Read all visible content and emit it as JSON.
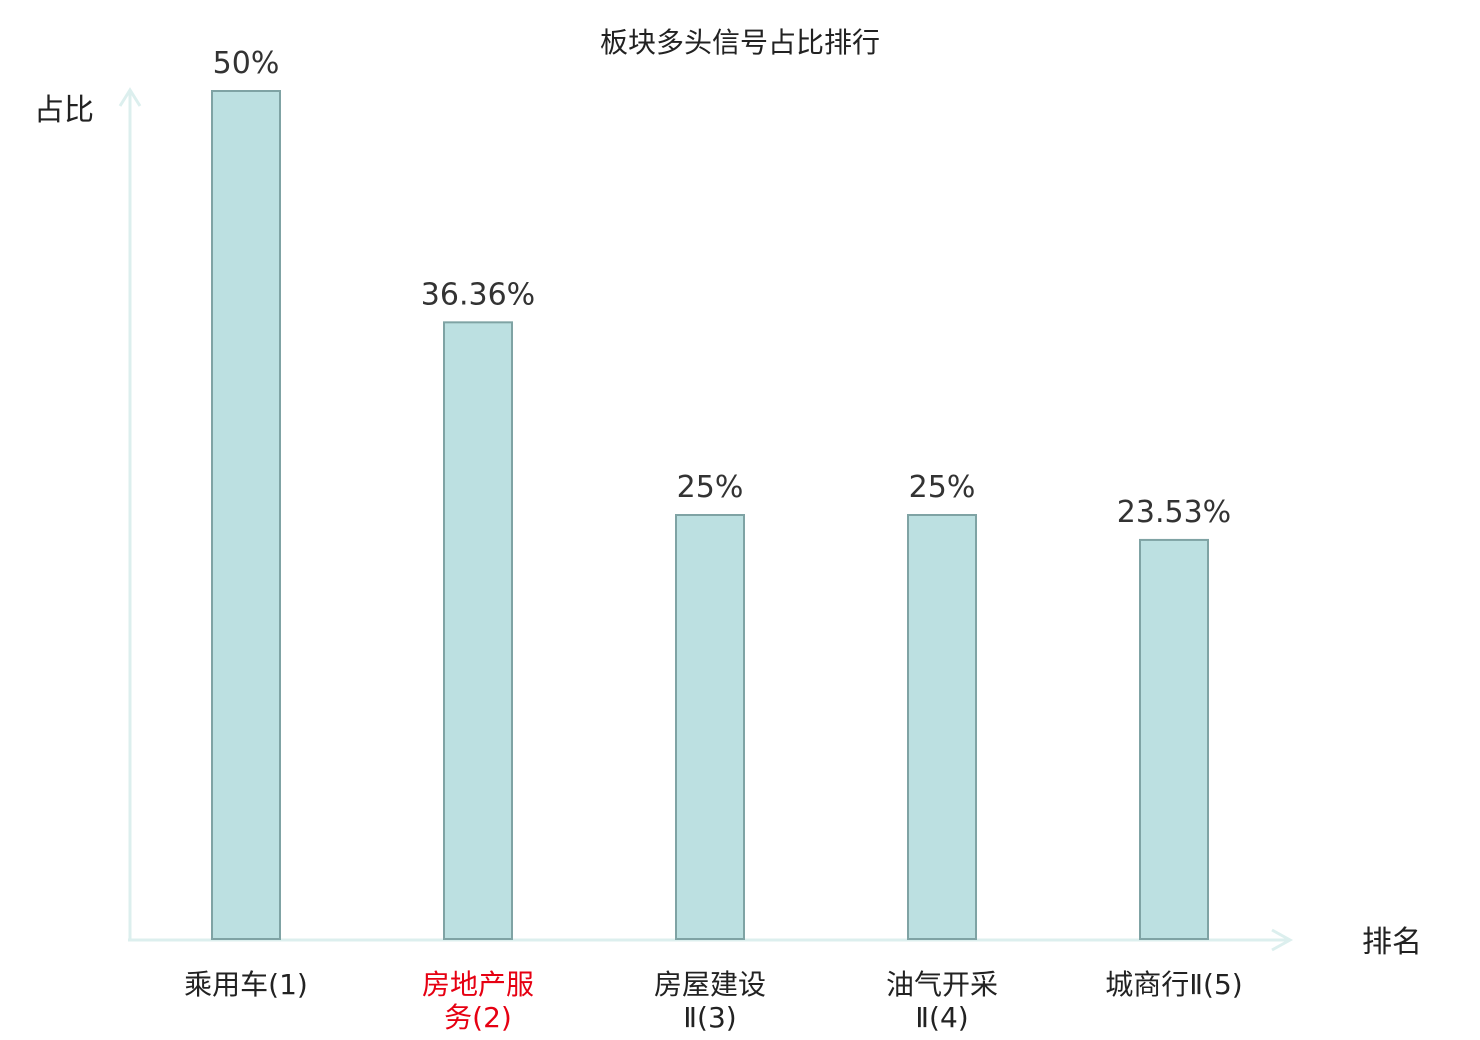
{
  "chart_data": {
    "type": "bar",
    "title": "板块多头信号占比排行",
    "ylabel": "占比",
    "xlabel": "排名",
    "ylim": [
      0,
      50
    ],
    "grid": false,
    "legend": "none",
    "categories": [
      {
        "lines": [
          "乘用车(1)"
        ],
        "highlight": false
      },
      {
        "lines": [
          "房地产服",
          "务(2)"
        ],
        "highlight": true
      },
      {
        "lines": [
          "房屋建设",
          "Ⅱ(3)"
        ],
        "highlight": false
      },
      {
        "lines": [
          "油气开采",
          "Ⅱ(4)"
        ],
        "highlight": false
      },
      {
        "lines": [
          "城商行Ⅱ(5)"
        ],
        "highlight": false
      }
    ],
    "values": [
      50,
      36.36,
      25,
      25,
      23.53
    ],
    "value_labels": [
      "50%",
      "36.36%",
      "25%",
      "25%",
      "23.53%"
    ]
  },
  "colors": {
    "bar_fill": "#bce0e1",
    "bar_stroke": "#7fa3a4",
    "axis": "#dcefee",
    "highlight_text": "#e60012",
    "text": "#222222"
  }
}
